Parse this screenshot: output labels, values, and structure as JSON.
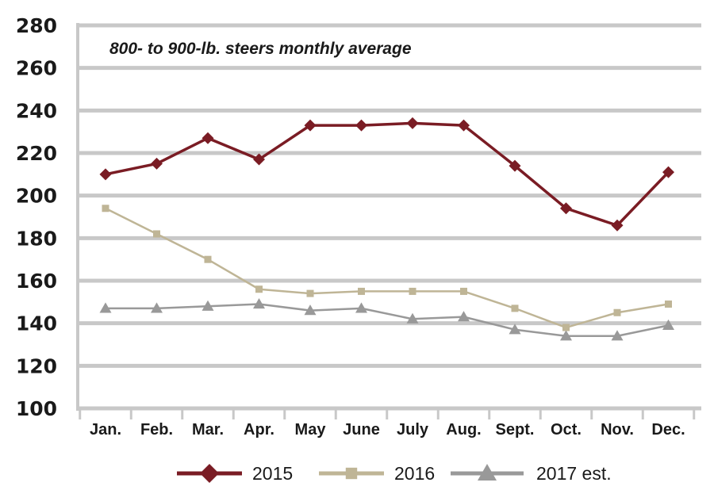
{
  "chart_data": {
    "type": "line",
    "title": "800- to 900-lb. steers monthly average",
    "categories": [
      "Jan.",
      "Feb.",
      "Mar.",
      "Apr.",
      "May",
      "June",
      "July",
      "Aug.",
      "Sept.",
      "Oct.",
      "Nov.",
      "Dec."
    ],
    "ylim": [
      100,
      280
    ],
    "yticks": [
      100,
      120,
      140,
      160,
      180,
      200,
      220,
      240,
      260,
      280
    ],
    "grid": true,
    "legend": "bottom",
    "series": [
      {
        "name": "2015",
        "color": "#7a1c24",
        "marker": "diamond",
        "values": [
          210,
          215,
          227,
          217,
          233,
          233,
          234,
          233,
          214,
          194,
          186,
          211
        ]
      },
      {
        "name": "2016",
        "color": "#bfb596",
        "marker": "square",
        "values": [
          194,
          182,
          170,
          156,
          154,
          155,
          155,
          155,
          147,
          138,
          145,
          149
        ]
      },
      {
        "name": "2017 est.",
        "color": "#999999",
        "marker": "triangle",
        "values": [
          147,
          147,
          148,
          149,
          146,
          147,
          142,
          143,
          137,
          134,
          134,
          139
        ]
      }
    ]
  }
}
